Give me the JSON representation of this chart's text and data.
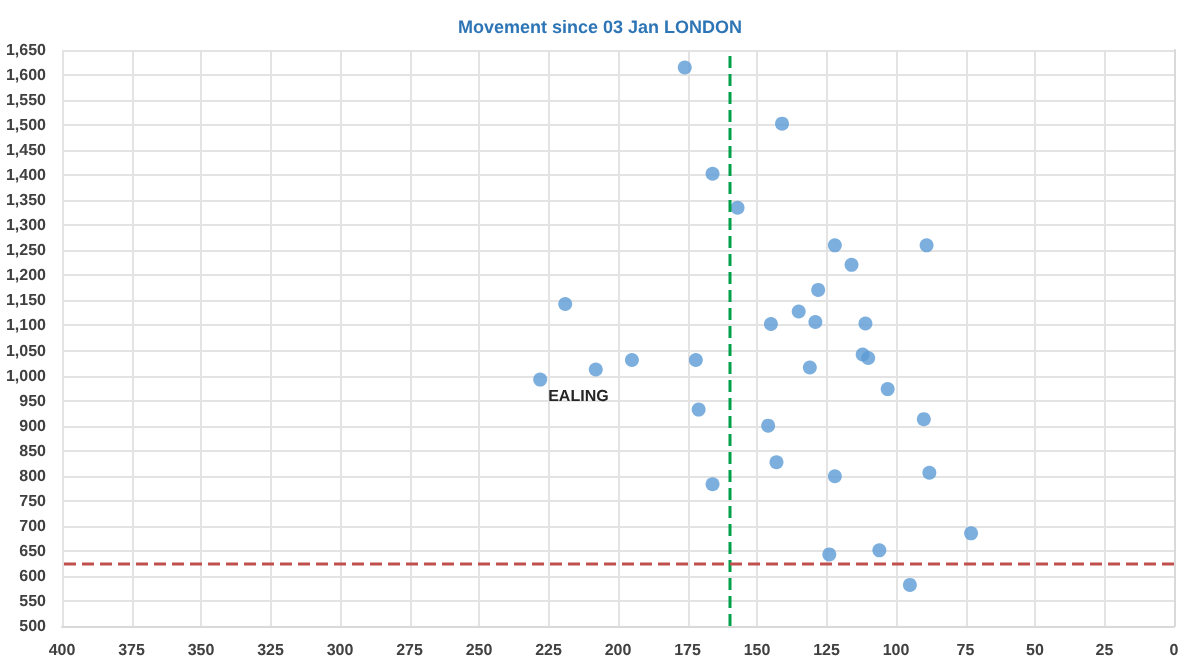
{
  "chart_data": {
    "type": "scatter",
    "title": "Movement since 03 Jan LONDON",
    "x": [
      176,
      141,
      166,
      157,
      219,
      135,
      145,
      228,
      208,
      195,
      172,
      171,
      146,
      143,
      166,
      122,
      89,
      116,
      128,
      129,
      111,
      112,
      110,
      131,
      103,
      90,
      122,
      88,
      73,
      106,
      124,
      95
    ],
    "series": [
      {
        "color": "#5b9bd5",
        "values": [
          1615,
          1503,
          1403,
          1335,
          1143,
          1128,
          1103,
          992,
          1012,
          1031,
          1031,
          932,
          900,
          827,
          783,
          1260,
          1260,
          1221,
          1171,
          1107,
          1104,
          1042,
          1035,
          1016,
          973,
          913,
          799,
          806,
          685,
          651,
          643,
          582
        ]
      }
    ],
    "xlim": [
      400,
      0
    ],
    "xticks": [
      400,
      375,
      350,
      325,
      300,
      275,
      250,
      225,
      200,
      175,
      150,
      125,
      100,
      75,
      50,
      25,
      0
    ],
    "ylim": [
      500,
      1650
    ],
    "yticks": [
      500,
      550,
      600,
      650,
      700,
      750,
      800,
      850,
      900,
      950,
      {
        "value": 1000,
        "label": "1,000"
      },
      {
        "value": 1050,
        "label": "1,050"
      },
      {
        "value": 1100,
        "label": "1,100"
      },
      {
        "value": 1150,
        "label": "1,150"
      },
      {
        "value": 1200,
        "label": "1,200"
      },
      {
        "value": 1250,
        "label": "1,250"
      },
      {
        "value": 1300,
        "label": "1,300"
      },
      {
        "value": 1350,
        "label": "1,350"
      },
      {
        "value": 1400,
        "label": "1,400"
      },
      {
        "value": 1450,
        "label": "1,450"
      },
      {
        "value": 1500,
        "label": "1,500"
      },
      {
        "value": 1550,
        "label": "1,550"
      },
      {
        "value": 1600,
        "label": "1,600"
      },
      {
        "value": 1650,
        "label": "1,650"
      }
    ],
    "annotations": [
      {
        "text": "EALING",
        "x": 228,
        "y": 992
      }
    ],
    "ref_lines": [
      {
        "axis": "x",
        "value": 160,
        "color": "#00a04a",
        "line_style": "dashed"
      },
      {
        "axis": "y",
        "value": 625,
        "color": "#c0504d",
        "line_style": "dashed"
      }
    ],
    "grid": true,
    "marker": "circle"
  }
}
